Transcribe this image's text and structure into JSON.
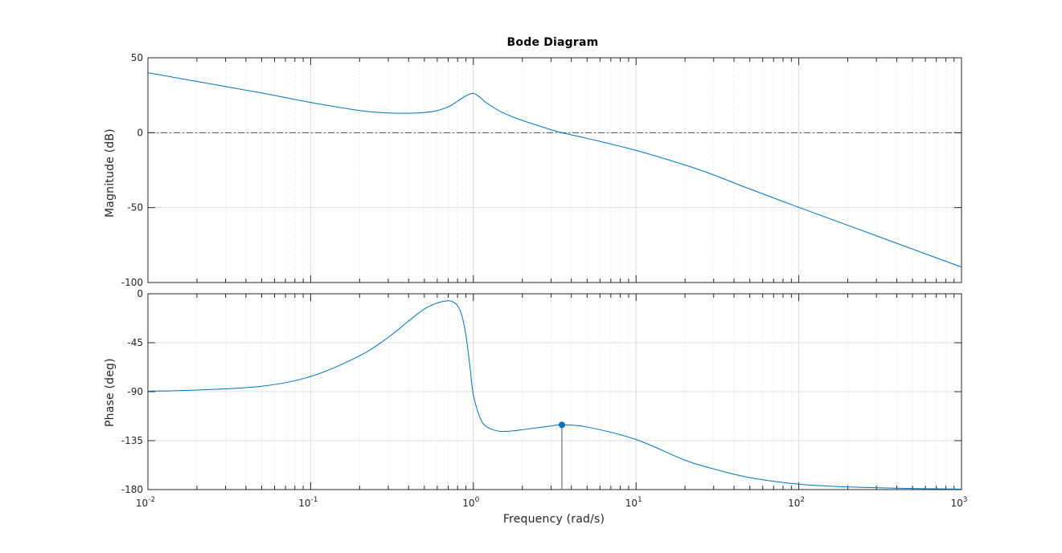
{
  "figure": {
    "title": "Bode Diagram",
    "xlabel": "Frequency  (rad/s)"
  },
  "colors": {
    "curve": "#0072BD",
    "axes": "#262626",
    "grid": "#dcdcdc",
    "reference_line": "#555555"
  },
  "chart_data": [
    {
      "type": "line",
      "panel": "magnitude",
      "title": "Bode Diagram",
      "ylabel": "Magnitude (dB)",
      "xscale": "log",
      "xlim": [
        0.01,
        1000
      ],
      "ylim": [
        -100,
        50
      ],
      "grid": true,
      "yticks": [
        50,
        0,
        -50,
        -100
      ],
      "reference_line": {
        "y": 0,
        "style": "dash-dot"
      },
      "series": [
        {
          "x": [
            0.01,
            0.02,
            0.05,
            0.1,
            0.2,
            0.3,
            0.4,
            0.5,
            0.6,
            0.7,
            0.8,
            0.9,
            1.0,
            1.1,
            1.2,
            1.5,
            2.0,
            3.0,
            3.5,
            5.0,
            10,
            20,
            30,
            50,
            100,
            200,
            500,
            1000
          ],
          "y": [
            40,
            34.2,
            26.5,
            20.2,
            14.8,
            13.2,
            13.0,
            13.5,
            14.8,
            17.2,
            21.0,
            24.6,
            26.2,
            23.6,
            20.0,
            13.6,
            8.2,
            2.0,
            0,
            -3.8,
            -11.8,
            -21.6,
            -28.2,
            -37.6,
            -49.8,
            -61.8,
            -77.7,
            -89.7
          ]
        }
      ]
    },
    {
      "type": "line",
      "panel": "phase",
      "ylabel": "Phase (deg)",
      "xlabel": "Frequency  (rad/s)",
      "xscale": "log",
      "xlim": [
        0.01,
        1000
      ],
      "ylim": [
        -180,
        0
      ],
      "grid": true,
      "yticks": [
        0,
        -45,
        -90,
        -135,
        -180
      ],
      "xticks": [
        "10^-2",
        "10^-1",
        "10^0",
        "10^1",
        "10^2",
        "10^3"
      ],
      "reference_line": {
        "y": -180,
        "style": "dash-dot"
      },
      "series": [
        {
          "x": [
            0.01,
            0.02,
            0.05,
            0.1,
            0.2,
            0.3,
            0.4,
            0.5,
            0.6,
            0.7,
            0.75,
            0.8,
            0.85,
            0.9,
            0.95,
            1.0,
            1.1,
            1.2,
            1.4,
            1.6,
            2.0,
            3.0,
            3.5,
            5.0,
            10,
            20,
            30,
            50,
            100,
            200,
            500,
            1000
          ],
          "y": [
            -89.5,
            -88.5,
            -85.0,
            -76.0,
            -57.0,
            -40.0,
            -25.0,
            -14.0,
            -8.5,
            -6.5,
            -7.5,
            -11.0,
            -20.0,
            -38.0,
            -65.0,
            -93.0,
            -114.0,
            -122.0,
            -126.0,
            -126.5,
            -125.0,
            -121.5,
            -120.5,
            -122.5,
            -134.0,
            -153.0,
            -161.0,
            -169.0,
            -175.0,
            -177.5,
            -179.0,
            -179.5
          ]
        }
      ],
      "marker": {
        "x": 3.5,
        "y": -120.5
      }
    }
  ]
}
